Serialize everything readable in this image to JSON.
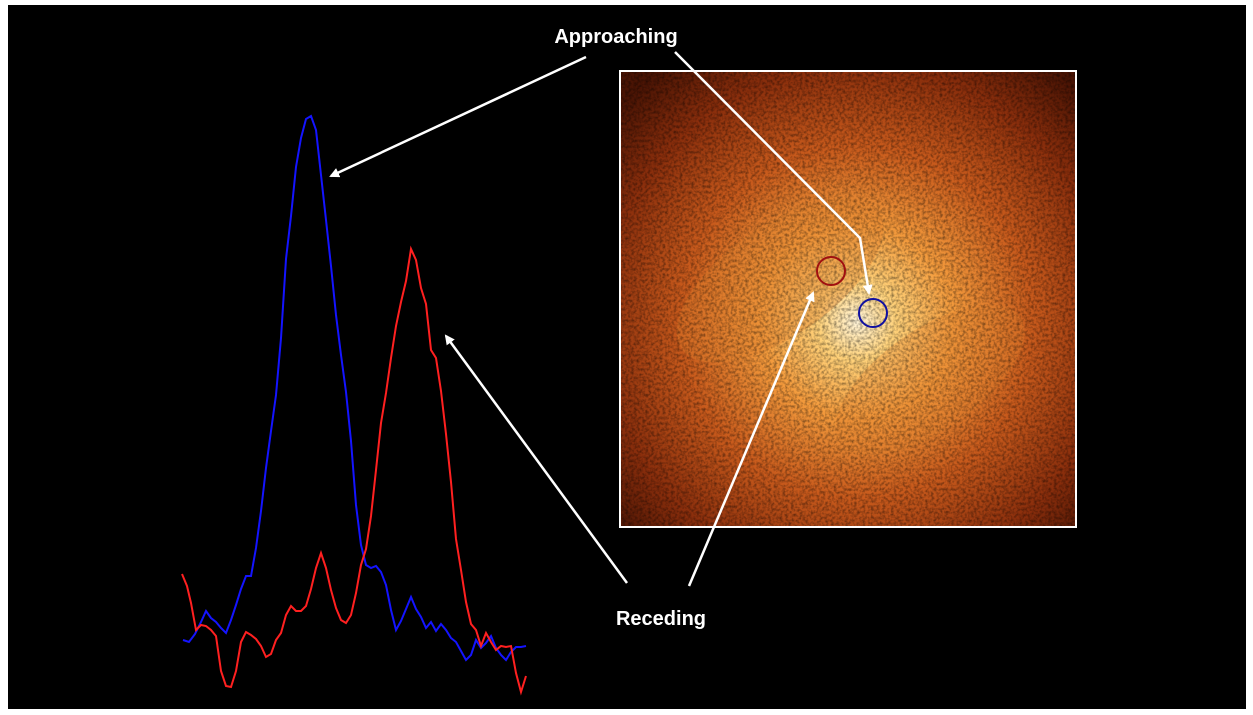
{
  "labels": {
    "approaching": "Approaching",
    "receding": "Receding"
  },
  "colors": {
    "background": "#000000",
    "approaching_series": "#1414ff",
    "receding_series": "#ff2020",
    "arrow": "#ffffff",
    "frame": "#ffffff"
  }
}
